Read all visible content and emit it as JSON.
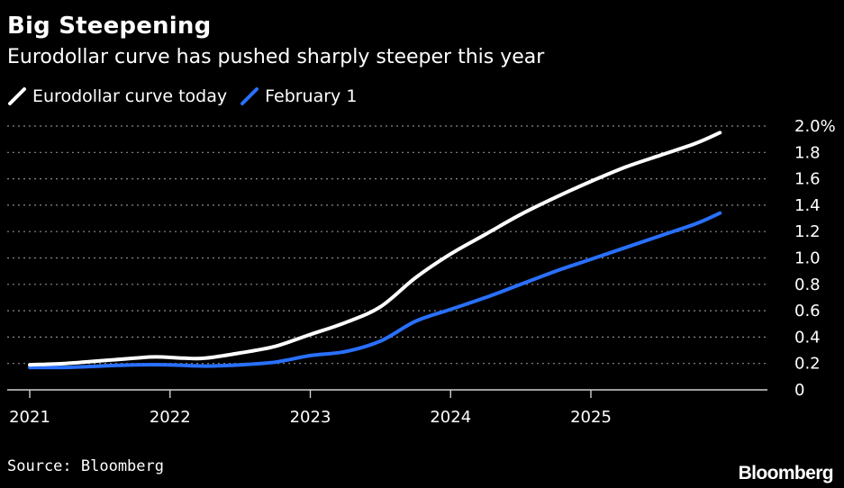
{
  "header": {
    "title": "Big Steepening",
    "subtitle": "Eurodollar curve has pushed sharply steeper this year"
  },
  "legend": [
    {
      "label": "Eurodollar curve today",
      "color": "#ffffff"
    },
    {
      "label": "February 1",
      "color": "#2970ff"
    }
  ],
  "footer": {
    "source": "Source: Bloomberg",
    "brand": "Bloomberg"
  },
  "chart_data": {
    "type": "line",
    "title": "Big Steepening",
    "subtitle": "Eurodollar curve has pushed sharply steeper this year",
    "xlabel": "",
    "ylabel": "",
    "xlim": [
      2021.0,
      2025.92
    ],
    "ylim": [
      0,
      2.0
    ],
    "x_ticks": [
      {
        "value": 2021,
        "label": "2021"
      },
      {
        "value": 2022,
        "label": "2022"
      },
      {
        "value": 2023,
        "label": "2023"
      },
      {
        "value": 2024,
        "label": "2024"
      },
      {
        "value": 2025,
        "label": "2025"
      }
    ],
    "y_ticks": [
      {
        "value": 2.0,
        "label": "2.0%"
      },
      {
        "value": 1.8,
        "label": "1.8"
      },
      {
        "value": 1.6,
        "label": "1.6"
      },
      {
        "value": 1.4,
        "label": "1.4"
      },
      {
        "value": 1.2,
        "label": "1.2"
      },
      {
        "value": 1.0,
        "label": "1.0"
      },
      {
        "value": 0.8,
        "label": "0.8"
      },
      {
        "value": 0.6,
        "label": "0.6"
      },
      {
        "value": 0.4,
        "label": "0.4"
      },
      {
        "value": 0.2,
        "label": "0.2"
      },
      {
        "value": 0,
        "label": "0"
      }
    ],
    "grid": "horizontal dotted",
    "axis_side": "right",
    "legend_position": "top-left",
    "series": [
      {
        "name": "Eurodollar curve today",
        "color": "#ffffff",
        "points": [
          [
            2021.0,
            0.19
          ],
          [
            2021.25,
            0.2
          ],
          [
            2021.5,
            0.22
          ],
          [
            2021.75,
            0.24
          ],
          [
            2021.9,
            0.25
          ],
          [
            2022.1,
            0.24
          ],
          [
            2022.25,
            0.24
          ],
          [
            2022.5,
            0.28
          ],
          [
            2022.75,
            0.33
          ],
          [
            2023.0,
            0.42
          ],
          [
            2023.25,
            0.51
          ],
          [
            2023.5,
            0.63
          ],
          [
            2023.75,
            0.85
          ],
          [
            2024.0,
            1.03
          ],
          [
            2024.25,
            1.18
          ],
          [
            2024.5,
            1.33
          ],
          [
            2024.75,
            1.46
          ],
          [
            2025.0,
            1.58
          ],
          [
            2025.25,
            1.69
          ],
          [
            2025.5,
            1.78
          ],
          [
            2025.75,
            1.87
          ],
          [
            2025.92,
            1.95
          ]
        ]
      },
      {
        "name": "February 1",
        "color": "#2970ff",
        "points": [
          [
            2021.0,
            0.17
          ],
          [
            2021.25,
            0.17
          ],
          [
            2021.5,
            0.18
          ],
          [
            2021.75,
            0.19
          ],
          [
            2022.0,
            0.19
          ],
          [
            2022.25,
            0.18
          ],
          [
            2022.5,
            0.19
          ],
          [
            2022.75,
            0.21
          ],
          [
            2023.0,
            0.26
          ],
          [
            2023.25,
            0.29
          ],
          [
            2023.5,
            0.37
          ],
          [
            2023.75,
            0.52
          ],
          [
            2024.0,
            0.61
          ],
          [
            2024.25,
            0.7
          ],
          [
            2024.5,
            0.8
          ],
          [
            2024.75,
            0.9
          ],
          [
            2025.0,
            0.99
          ],
          [
            2025.25,
            1.08
          ],
          [
            2025.5,
            1.17
          ],
          [
            2025.75,
            1.26
          ],
          [
            2025.92,
            1.34
          ]
        ]
      }
    ]
  }
}
